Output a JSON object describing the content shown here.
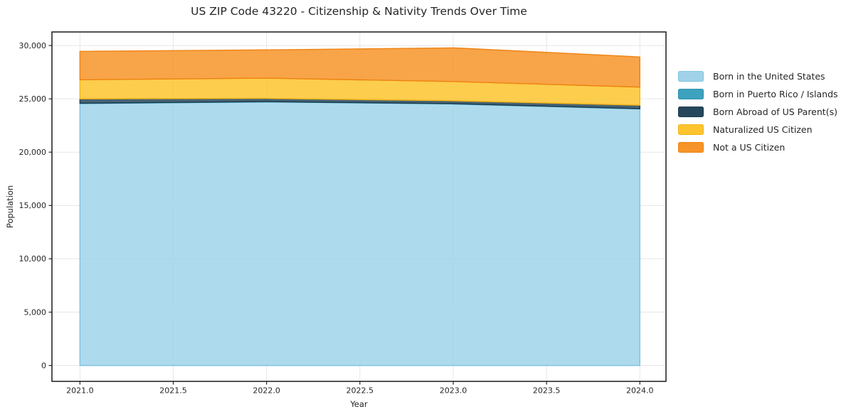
{
  "title": "US ZIP Code 43220 - Citizenship & Nativity Trends Over Time",
  "axes": {
    "xlabel": "Year",
    "ylabel": "Population"
  },
  "chart_data": {
    "type": "area",
    "stacked": true,
    "title": "US ZIP Code 43220 - Citizenship & Nativity Trends Over Time",
    "xlabel": "Year",
    "ylabel": "Population",
    "x": [
      2021,
      2022,
      2023,
      2024
    ],
    "series": [
      {
        "name": "Born in the United States",
        "color": "#A0D3EA",
        "edge_color": "#7FC2E2",
        "values": [
          24560,
          24710,
          24520,
          24050
        ]
      },
      {
        "name": "Born in Puerto Rico / Islands",
        "color": "#3EA1BE",
        "edge_color": "#2D93B2",
        "values": [
          30,
          30,
          30,
          30
        ]
      },
      {
        "name": "Born Abroad of US Parent(s)",
        "color": "#27485C",
        "edge_color": "#1E3C4E",
        "values": [
          410,
          300,
          270,
          320
        ]
      },
      {
        "name": "Naturalized US Citizen",
        "color": "#FDC42F",
        "edge_color": "#F4B517",
        "values": [
          1790,
          1900,
          1800,
          1700
        ]
      },
      {
        "name": "Not a US Citizen",
        "color": "#F79429",
        "edge_color": "#EE8312",
        "values": [
          2660,
          2650,
          3160,
          2830
        ]
      }
    ],
    "totals": [
      29450,
      29590,
      29780,
      28930
    ],
    "xlim": [
      2020.85,
      2024.14
    ],
    "ylim": [
      -1490,
      31270
    ],
    "x_ticks": [
      2021.0,
      2021.5,
      2022.0,
      2022.5,
      2023.0,
      2023.5,
      2024.0
    ],
    "x_tick_labels": [
      "2021.0",
      "2021.5",
      "2022.0",
      "2022.5",
      "2023.0",
      "2023.5",
      "2024.0"
    ],
    "y_ticks": [
      0,
      5000,
      10000,
      15000,
      20000,
      25000,
      30000
    ],
    "y_tick_labels": [
      "0",
      "5,000",
      "10,000",
      "15,000",
      "20,000",
      "25,000",
      "30,000"
    ],
    "grid": true,
    "legend_position": "right-outside"
  }
}
